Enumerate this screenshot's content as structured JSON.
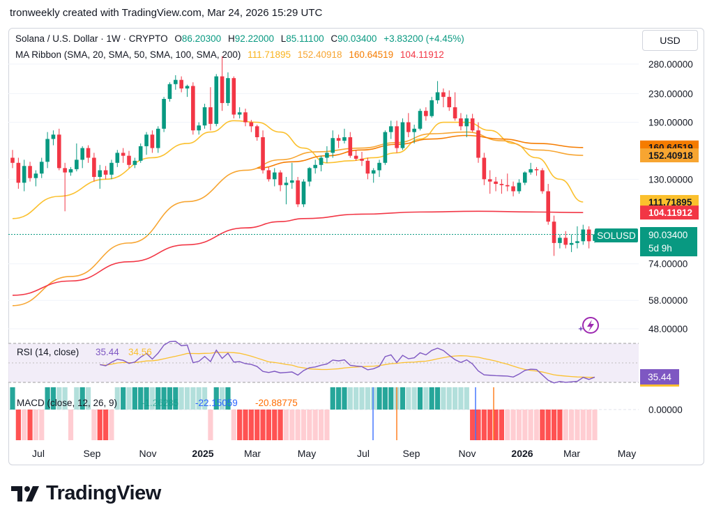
{
  "header": {
    "text": "tronweekly created with TradingView.com, Mar 24, 2026 15:29 UTC"
  },
  "legend": {
    "symbol": "Solana / U.S. Dollar · 1W · CRYPTO",
    "o_label": "O",
    "open": "86.20300",
    "h_label": "H",
    "high": "92.22000",
    "l_label": "L",
    "low": "85.11100",
    "c_label": "C",
    "close": "90.03400",
    "change": "+3.83200 (+4.45%)",
    "ma_label": "MA Ribbon (SMA, 20, SMA, 50, SMA, 100, SMA, 200)",
    "ma_values": [
      "111.71895",
      "152.40918",
      "160.64519",
      "104.11912"
    ]
  },
  "currency_button": "USD",
  "price_axis": {
    "ticks": [
      "280.00000",
      "230.00000",
      "190.00000",
      "74.00000",
      "58.00000",
      "48.00000"
    ],
    "hidden_tick": "130.00000",
    "tick_values": [
      280,
      230,
      190,
      130,
      74,
      58,
      48
    ],
    "scale": "log"
  },
  "price_tags": [
    {
      "label": "160.64519",
      "value": 160.64519,
      "color": "#f57c00",
      "text_color": "#131722"
    },
    {
      "label": "152.40918",
      "value": 152.40918,
      "color": "#f7a531",
      "text_color": "#131722"
    },
    {
      "label": "111.71895",
      "value": 111.71895,
      "color": "#fbc02d",
      "text_color": "#131722"
    },
    {
      "label": "104.11912",
      "value": 104.11912,
      "color": "#f23645",
      "text_color": "#ffffff"
    }
  ],
  "current": {
    "symbol": "SOLUSD",
    "price": "90.03400",
    "countdown": "5d 9h",
    "color": "#089981"
  },
  "time_axis": [
    "Jul",
    "Sep",
    "Nov",
    "2025",
    "Mar",
    "May",
    "Jul",
    "Sep",
    "Nov",
    "2026",
    "Mar",
    "May"
  ],
  "rsi": {
    "label": "RSI (14, close)",
    "value": "35.44",
    "ma_value": "34.56",
    "tag": "35.44"
  },
  "macd": {
    "label": "MACD (close, 12, 26, 9)",
    "hist": "-1.26285",
    "macd": "-22.15059",
    "signal": "-20.88775",
    "zero_tick": "0.00000"
  },
  "brand": {
    "name": "TradingView"
  },
  "colors": {
    "up": "#089981",
    "down": "#f23645",
    "rsi": "#7e57c2",
    "rsi_ma": "#fbc02d",
    "macd": "#2962ff",
    "signal": "#ff6d00"
  },
  "chart_data": {
    "type": "candlestick",
    "title": "Solana / U.S. Dollar · 1W · CRYPTO",
    "yscale": "log",
    "ylim": [
      44,
      300
    ],
    "candles": [
      {
        "o": 150,
        "h": 158,
        "l": 140,
        "c": 145
      },
      {
        "o": 145,
        "h": 150,
        "l": 122,
        "c": 127
      },
      {
        "o": 127,
        "h": 148,
        "l": 120,
        "c": 142
      },
      {
        "o": 142,
        "h": 146,
        "l": 128,
        "c": 131
      },
      {
        "o": 131,
        "h": 138,
        "l": 124,
        "c": 135
      },
      {
        "o": 135,
        "h": 150,
        "l": 131,
        "c": 146
      },
      {
        "o": 146,
        "h": 178,
        "l": 140,
        "c": 170
      },
      {
        "o": 170,
        "h": 180,
        "l": 163,
        "c": 175
      },
      {
        "o": 175,
        "h": 182,
        "l": 138,
        "c": 140
      },
      {
        "o": 140,
        "h": 145,
        "l": 105,
        "c": 136
      },
      {
        "o": 136,
        "h": 141,
        "l": 133,
        "c": 139
      },
      {
        "o": 139,
        "h": 165,
        "l": 137,
        "c": 148
      },
      {
        "o": 148,
        "h": 162,
        "l": 140,
        "c": 160
      },
      {
        "o": 160,
        "h": 163,
        "l": 145,
        "c": 150
      },
      {
        "o": 150,
        "h": 155,
        "l": 128,
        "c": 132
      },
      {
        "o": 132,
        "h": 143,
        "l": 122,
        "c": 138
      },
      {
        "o": 138,
        "h": 142,
        "l": 130,
        "c": 134
      },
      {
        "o": 134,
        "h": 148,
        "l": 130,
        "c": 145
      },
      {
        "o": 145,
        "h": 158,
        "l": 141,
        "c": 155
      },
      {
        "o": 155,
        "h": 160,
        "l": 145,
        "c": 152
      },
      {
        "o": 152,
        "h": 157,
        "l": 140,
        "c": 143
      },
      {
        "o": 143,
        "h": 150,
        "l": 140,
        "c": 147
      },
      {
        "o": 147,
        "h": 165,
        "l": 145,
        "c": 162
      },
      {
        "o": 162,
        "h": 178,
        "l": 153,
        "c": 175
      },
      {
        "o": 175,
        "h": 180,
        "l": 155,
        "c": 160
      },
      {
        "o": 160,
        "h": 185,
        "l": 155,
        "c": 182
      },
      {
        "o": 182,
        "h": 225,
        "l": 178,
        "c": 222
      },
      {
        "o": 222,
        "h": 248,
        "l": 218,
        "c": 245
      },
      {
        "o": 245,
        "h": 260,
        "l": 236,
        "c": 252
      },
      {
        "o": 252,
        "h": 258,
        "l": 232,
        "c": 238
      },
      {
        "o": 238,
        "h": 244,
        "l": 225,
        "c": 242
      },
      {
        "o": 242,
        "h": 248,
        "l": 175,
        "c": 180
      },
      {
        "o": 180,
        "h": 190,
        "l": 175,
        "c": 186
      },
      {
        "o": 186,
        "h": 215,
        "l": 182,
        "c": 210
      },
      {
        "o": 210,
        "h": 240,
        "l": 180,
        "c": 188
      },
      {
        "o": 188,
        "h": 262,
        "l": 185,
        "c": 258
      },
      {
        "o": 258,
        "h": 295,
        "l": 205,
        "c": 216
      },
      {
        "o": 216,
        "h": 265,
        "l": 212,
        "c": 255
      },
      {
        "o": 255,
        "h": 258,
        "l": 195,
        "c": 200
      },
      {
        "o": 200,
        "h": 210,
        "l": 195,
        "c": 203
      },
      {
        "o": 203,
        "h": 208,
        "l": 185,
        "c": 190
      },
      {
        "o": 190,
        "h": 193,
        "l": 178,
        "c": 185
      },
      {
        "o": 185,
        "h": 187,
        "l": 168,
        "c": 172
      },
      {
        "o": 172,
        "h": 180,
        "l": 135,
        "c": 138
      },
      {
        "o": 138,
        "h": 141,
        "l": 128,
        "c": 130
      },
      {
        "o": 130,
        "h": 140,
        "l": 124,
        "c": 136
      },
      {
        "o": 136,
        "h": 138,
        "l": 120,
        "c": 125
      },
      {
        "o": 125,
        "h": 132,
        "l": 110,
        "c": 127
      },
      {
        "o": 127,
        "h": 145,
        "l": 122,
        "c": 129
      },
      {
        "o": 129,
        "h": 132,
        "l": 108,
        "c": 110
      },
      {
        "o": 110,
        "h": 130,
        "l": 108,
        "c": 128
      },
      {
        "o": 128,
        "h": 141,
        "l": 124,
        "c": 140
      },
      {
        "o": 140,
        "h": 148,
        "l": 135,
        "c": 143
      },
      {
        "o": 143,
        "h": 152,
        "l": 137,
        "c": 150
      },
      {
        "o": 150,
        "h": 162,
        "l": 145,
        "c": 155
      },
      {
        "o": 155,
        "h": 180,
        "l": 150,
        "c": 171
      },
      {
        "o": 171,
        "h": 175,
        "l": 160,
        "c": 168
      },
      {
        "o": 168,
        "h": 182,
        "l": 165,
        "c": 172
      },
      {
        "o": 172,
        "h": 178,
        "l": 150,
        "c": 152
      },
      {
        "o": 152,
        "h": 158,
        "l": 147,
        "c": 149
      },
      {
        "o": 149,
        "h": 156,
        "l": 142,
        "c": 147
      },
      {
        "o": 147,
        "h": 150,
        "l": 130,
        "c": 135
      },
      {
        "o": 135,
        "h": 140,
        "l": 127,
        "c": 138
      },
      {
        "o": 138,
        "h": 148,
        "l": 132,
        "c": 145
      },
      {
        "o": 145,
        "h": 180,
        "l": 143,
        "c": 178
      },
      {
        "o": 178,
        "h": 192,
        "l": 170,
        "c": 185
      },
      {
        "o": 185,
        "h": 192,
        "l": 155,
        "c": 160
      },
      {
        "o": 160,
        "h": 195,
        "l": 158,
        "c": 190
      },
      {
        "o": 190,
        "h": 202,
        "l": 172,
        "c": 178
      },
      {
        "o": 178,
        "h": 187,
        "l": 165,
        "c": 182
      },
      {
        "o": 182,
        "h": 208,
        "l": 180,
        "c": 205
      },
      {
        "o": 205,
        "h": 210,
        "l": 192,
        "c": 198
      },
      {
        "o": 198,
        "h": 225,
        "l": 196,
        "c": 220
      },
      {
        "o": 220,
        "h": 250,
        "l": 215,
        "c": 232
      },
      {
        "o": 232,
        "h": 238,
        "l": 210,
        "c": 225
      },
      {
        "o": 225,
        "h": 235,
        "l": 205,
        "c": 210
      },
      {
        "o": 210,
        "h": 232,
        "l": 192,
        "c": 195
      },
      {
        "o": 195,
        "h": 202,
        "l": 180,
        "c": 185
      },
      {
        "o": 185,
        "h": 200,
        "l": 172,
        "c": 195
      },
      {
        "o": 195,
        "h": 201,
        "l": 178,
        "c": 180
      },
      {
        "o": 180,
        "h": 190,
        "l": 145,
        "c": 150
      },
      {
        "o": 150,
        "h": 155,
        "l": 125,
        "c": 130
      },
      {
        "o": 130,
        "h": 138,
        "l": 118,
        "c": 128
      },
      {
        "o": 128,
        "h": 132,
        "l": 120,
        "c": 126
      },
      {
        "o": 126,
        "h": 130,
        "l": 118,
        "c": 125
      },
      {
        "o": 125,
        "h": 135,
        "l": 120,
        "c": 124
      },
      {
        "o": 124,
        "h": 128,
        "l": 116,
        "c": 120
      },
      {
        "o": 120,
        "h": 130,
        "l": 118,
        "c": 127
      },
      {
        "o": 127,
        "h": 137,
        "l": 125,
        "c": 136
      },
      {
        "o": 136,
        "h": 145,
        "l": 134,
        "c": 139
      },
      {
        "o": 139,
        "h": 141,
        "l": 133,
        "c": 138
      },
      {
        "o": 138,
        "h": 140,
        "l": 118,
        "c": 120
      },
      {
        "o": 120,
        "h": 126,
        "l": 96,
        "c": 98
      },
      {
        "o": 98,
        "h": 102,
        "l": 78,
        "c": 85
      },
      {
        "o": 85,
        "h": 90,
        "l": 82,
        "c": 88
      },
      {
        "o": 88,
        "h": 92,
        "l": 82,
        "c": 84
      },
      {
        "o": 84,
        "h": 90,
        "l": 80,
        "c": 85
      },
      {
        "o": 85,
        "h": 95,
        "l": 82,
        "c": 86
      },
      {
        "o": 86,
        "h": 96,
        "l": 84,
        "c": 93
      },
      {
        "o": 93,
        "h": 95,
        "l": 82,
        "c": 86
      },
      {
        "o": 86.203,
        "h": 92.22,
        "l": 85.111,
        "c": 90.034
      }
    ],
    "ma_series": [
      {
        "name": "SMA 20",
        "color": "#fbc02d",
        "values": [
          {
            "i": 0,
            "v": 100
          },
          {
            "i": 8,
            "v": 116
          },
          {
            "i": 16,
            "v": 130
          },
          {
            "i": 24,
            "v": 150
          },
          {
            "i": 30,
            "v": 165
          },
          {
            "i": 34,
            "v": 178
          },
          {
            "i": 38,
            "v": 192
          },
          {
            "i": 42,
            "v": 190
          },
          {
            "i": 46,
            "v": 178
          },
          {
            "i": 50,
            "v": 160
          },
          {
            "i": 54,
            "v": 145
          },
          {
            "i": 58,
            "v": 147
          },
          {
            "i": 62,
            "v": 150
          },
          {
            "i": 66,
            "v": 155
          },
          {
            "i": 70,
            "v": 170
          },
          {
            "i": 74,
            "v": 190
          },
          {
            "i": 78,
            "v": 190
          },
          {
            "i": 82,
            "v": 180
          },
          {
            "i": 86,
            "v": 165
          },
          {
            "i": 90,
            "v": 150
          },
          {
            "i": 94,
            "v": 130
          },
          {
            "i": 98,
            "v": 111.7
          }
        ]
      },
      {
        "name": "SMA 50",
        "color": "#f7a531",
        "values": [
          {
            "i": 0,
            "v": 56
          },
          {
            "i": 10,
            "v": 68
          },
          {
            "i": 20,
            "v": 85
          },
          {
            "i": 30,
            "v": 112
          },
          {
            "i": 40,
            "v": 138
          },
          {
            "i": 46,
            "v": 148
          },
          {
            "i": 52,
            "v": 156
          },
          {
            "i": 60,
            "v": 160
          },
          {
            "i": 66,
            "v": 166
          },
          {
            "i": 72,
            "v": 176
          },
          {
            "i": 78,
            "v": 178
          },
          {
            "i": 84,
            "v": 168
          },
          {
            "i": 90,
            "v": 158
          },
          {
            "i": 98,
            "v": 152.4
          }
        ]
      },
      {
        "name": "SMA 100",
        "color": "#f57c00",
        "values": [
          {
            "i": 42,
            "v": 140
          },
          {
            "i": 48,
            "v": 146
          },
          {
            "i": 54,
            "v": 152
          },
          {
            "i": 60,
            "v": 158
          },
          {
            "i": 66,
            "v": 164
          },
          {
            "i": 72,
            "v": 170
          },
          {
            "i": 78,
            "v": 174
          },
          {
            "i": 84,
            "v": 170
          },
          {
            "i": 90,
            "v": 165
          },
          {
            "i": 98,
            "v": 160.6
          }
        ]
      },
      {
        "name": "SMA 200",
        "color": "#f23645",
        "values": [
          {
            "i": 0,
            "v": 60
          },
          {
            "i": 10,
            "v": 66
          },
          {
            "i": 20,
            "v": 75
          },
          {
            "i": 30,
            "v": 84
          },
          {
            "i": 40,
            "v": 94
          },
          {
            "i": 46,
            "v": 98
          },
          {
            "i": 50,
            "v": 100
          },
          {
            "i": 60,
            "v": 103
          },
          {
            "i": 70,
            "v": 104.5
          },
          {
            "i": 80,
            "v": 105
          },
          {
            "i": 90,
            "v": 104.5
          },
          {
            "i": 98,
            "v": 104.1
          }
        ]
      }
    ]
  }
}
